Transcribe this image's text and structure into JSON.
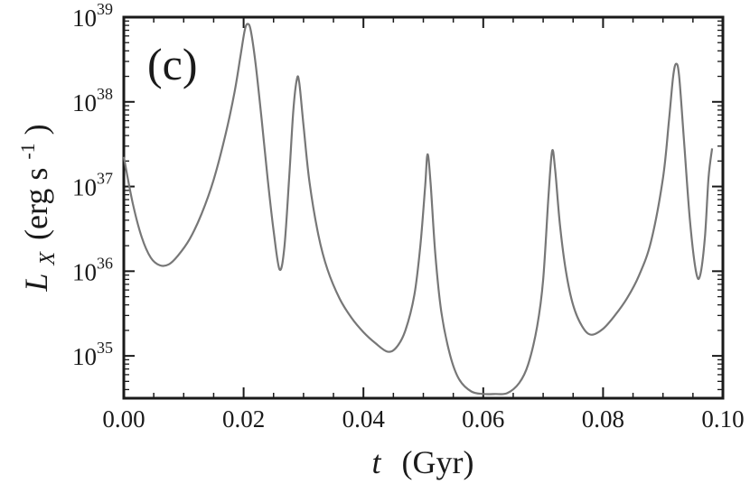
{
  "chart_data": {
    "type": "line",
    "panel_label": "(c)",
    "xlabel": {
      "var": "t",
      "unit": "(Gyr)"
    },
    "ylabel": {
      "var": "L",
      "sub": "X",
      "unit_main": "(erg s",
      "unit_sup": "-1",
      "unit_close": ")"
    },
    "xlim": [
      0.0,
      0.1
    ],
    "ylim_log10": [
      34.5,
      39.0
    ],
    "y_scale": "log",
    "grid": false,
    "xticks": [
      {
        "value": 0.0,
        "label": "0.00"
      },
      {
        "value": 0.02,
        "label": "0.02"
      },
      {
        "value": 0.04,
        "label": "0.04"
      },
      {
        "value": 0.06,
        "label": "0.06"
      },
      {
        "value": 0.08,
        "label": "0.08"
      },
      {
        "value": 0.1,
        "label": "0.10"
      }
    ],
    "yticks": [
      {
        "exp": 35,
        "base": "10",
        "sup": "35"
      },
      {
        "exp": 36,
        "base": "10",
        "sup": "36"
      },
      {
        "exp": 37,
        "base": "10",
        "sup": "37"
      },
      {
        "exp": 38,
        "base": "10",
        "sup": "38"
      },
      {
        "exp": 39,
        "base": "10",
        "sup": "39"
      }
    ],
    "series": [
      {
        "line_color": "#777777",
        "x": [
          0.0,
          0.0015,
          0.003,
          0.0045,
          0.006,
          0.0075,
          0.009,
          0.011,
          0.013,
          0.015,
          0.017,
          0.0185,
          0.0195,
          0.0202,
          0.0207,
          0.0212,
          0.022,
          0.023,
          0.024,
          0.025,
          0.026,
          0.0268,
          0.0276,
          0.0283,
          0.0289,
          0.0293,
          0.03,
          0.031,
          0.0325,
          0.034,
          0.036,
          0.038,
          0.04,
          0.042,
          0.044,
          0.0455,
          0.047,
          0.0485,
          0.0495,
          0.0503,
          0.0507,
          0.0512,
          0.052,
          0.053,
          0.0545,
          0.056,
          0.058,
          0.06,
          0.062,
          0.064,
          0.066,
          0.0675,
          0.069,
          0.07,
          0.0709,
          0.0715,
          0.072,
          0.0728,
          0.0738,
          0.075,
          0.0765,
          0.078,
          0.08,
          0.082,
          0.084,
          0.086,
          0.088,
          0.09,
          0.091,
          0.0917,
          0.0922,
          0.0927,
          0.0935,
          0.0945,
          0.0955,
          0.0962,
          0.097,
          0.0976,
          0.0982
        ],
        "y_log10": [
          37.35,
          36.8,
          36.4,
          36.16,
          36.07,
          36.08,
          36.18,
          36.38,
          36.68,
          37.08,
          37.62,
          38.12,
          38.55,
          38.85,
          38.92,
          38.84,
          38.45,
          37.8,
          37.1,
          36.48,
          36.02,
          36.28,
          37.1,
          37.9,
          38.27,
          38.22,
          37.72,
          37.05,
          36.42,
          36.02,
          35.68,
          35.45,
          35.28,
          35.15,
          35.05,
          35.1,
          35.3,
          35.72,
          36.3,
          37.0,
          37.38,
          37.05,
          36.2,
          35.52,
          35.0,
          34.72,
          34.58,
          34.55,
          34.55,
          34.56,
          34.68,
          34.9,
          35.35,
          35.9,
          36.9,
          37.42,
          37.2,
          36.55,
          36.0,
          35.6,
          35.35,
          35.25,
          35.32,
          35.48,
          35.68,
          35.95,
          36.35,
          37.1,
          37.78,
          38.3,
          38.45,
          38.3,
          37.55,
          36.6,
          36.0,
          35.95,
          36.4,
          37.1,
          37.45
        ]
      }
    ]
  }
}
